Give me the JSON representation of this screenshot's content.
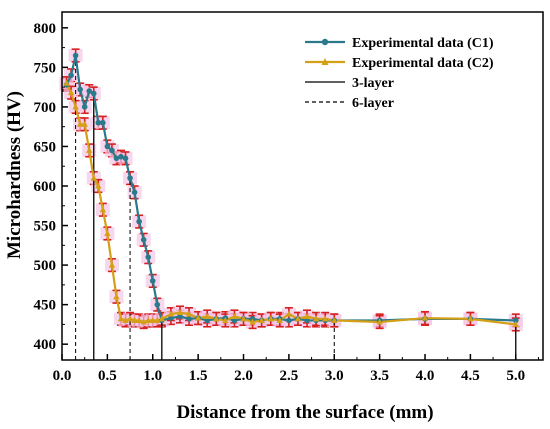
{
  "chart_data": {
    "type": "line",
    "title": "",
    "xlabel": "Distance from the surface (mm)",
    "ylabel": "Microhardness (HV)",
    "xlim": [
      0,
      5.3
    ],
    "ylim": [
      380,
      820
    ],
    "xticks": [
      0.0,
      0.5,
      1.0,
      1.5,
      2.0,
      2.5,
      3.0,
      3.5,
      4.0,
      4.5,
      5.0
    ],
    "xtick_labels": [
      "0.0",
      "0.5",
      "1.0",
      "1.5",
      "2.0",
      "2.5",
      "3.0",
      "3.5",
      "4.0",
      "4.5",
      "5.0"
    ],
    "yticks": [
      400,
      450,
      500,
      550,
      600,
      650,
      700,
      750,
      800
    ],
    "ytick_labels": [
      "400",
      "450",
      "500",
      "550",
      "600",
      "650",
      "700",
      "750",
      "800"
    ],
    "legend_position": "top-right",
    "series": [
      {
        "name": "Experimental data (C1)",
        "color": "#2b7a8c",
        "marker": "circle",
        "x": [
          0.05,
          0.1,
          0.15,
          0.2,
          0.25,
          0.3,
          0.35,
          0.4,
          0.45,
          0.5,
          0.55,
          0.6,
          0.65,
          0.7,
          0.75,
          0.8,
          0.85,
          0.9,
          0.95,
          1.0,
          1.05,
          1.1,
          1.2,
          1.3,
          1.4,
          1.5,
          1.6,
          1.7,
          1.8,
          1.9,
          2.0,
          2.1,
          2.2,
          2.3,
          2.4,
          2.5,
          2.6,
          2.7,
          2.8,
          2.9,
          3.0,
          3.5,
          4.0,
          4.5,
          5.0
        ],
        "values": [
          728,
          740,
          765,
          722,
          700,
          720,
          717,
          680,
          680,
          650,
          645,
          635,
          637,
          635,
          610,
          592,
          555,
          532,
          510,
          480,
          450,
          430,
          433,
          435,
          432,
          433,
          430,
          432,
          433,
          430,
          432,
          432,
          430,
          432,
          432,
          430,
          432,
          430,
          430,
          430,
          430,
          430,
          432,
          432,
          430
        ]
      },
      {
        "name": "Experimental data (C2)",
        "color": "#d4a017",
        "marker": "triangle",
        "x": [
          0.05,
          0.1,
          0.15,
          0.2,
          0.25,
          0.3,
          0.35,
          0.4,
          0.45,
          0.5,
          0.55,
          0.6,
          0.65,
          0.7,
          0.75,
          0.8,
          0.85,
          0.9,
          0.95,
          1.0,
          1.05,
          1.1,
          1.2,
          1.3,
          1.4,
          1.5,
          1.6,
          1.7,
          1.8,
          1.9,
          2.0,
          2.1,
          2.2,
          2.3,
          2.4,
          2.5,
          2.6,
          2.7,
          2.8,
          2.9,
          3.0,
          3.5,
          4.0,
          4.5,
          5.0
        ],
        "values": [
          730,
          718,
          700,
          678,
          678,
          645,
          610,
          600,
          570,
          540,
          500,
          460,
          432,
          430,
          432,
          430,
          430,
          428,
          430,
          430,
          430,
          432,
          438,
          440,
          438,
          433,
          435,
          432,
          430,
          435,
          432,
          428,
          430,
          432,
          430,
          438,
          432,
          435,
          432,
          432,
          430,
          428,
          433,
          432,
          425
        ]
      },
      {
        "name": "3-layer",
        "style": "solid",
        "vlines": [
          0.35,
          1.1,
          5.0
        ]
      },
      {
        "name": "6-layer",
        "style": "dashed",
        "vlines": [
          0.15,
          0.75,
          3.0
        ]
      }
    ]
  }
}
